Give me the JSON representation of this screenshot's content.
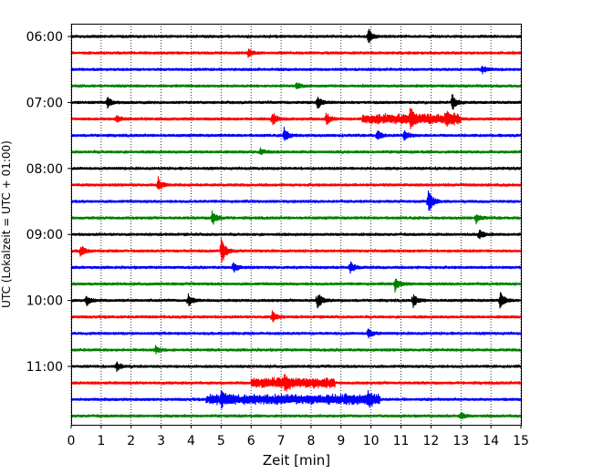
{
  "chart_data": {
    "type": "line",
    "title": "",
    "xlabel": "Zeit  [min]",
    "ylabel": "UTC (Lokalzeit = UTC + 01:00)",
    "xlim": [
      0,
      15
    ],
    "x_ticks": [
      "0",
      "1",
      "2",
      "3",
      "4",
      "5",
      "6",
      "7",
      "8",
      "9",
      "10",
      "11",
      "12",
      "13",
      "14",
      "15"
    ],
    "y_tick_labels": [
      "06:00",
      "07:00",
      "08:00",
      "09:00",
      "10:00",
      "11:00"
    ],
    "trace_start_times": [
      "06:00",
      "06:15",
      "06:30",
      "06:45",
      "07:00",
      "07:15",
      "07:30",
      "07:45",
      "08:00",
      "08:15",
      "08:30",
      "08:45",
      "09:00",
      "09:15",
      "09:30",
      "09:45",
      "10:00",
      "10:15",
      "10:30",
      "10:45",
      "11:00",
      "11:15",
      "11:30",
      "11:45"
    ],
    "trace_color_cycle": [
      "#000000",
      "#ff0000",
      "#0000ff",
      "#008000"
    ],
    "grid": {
      "x_dotted": true
    },
    "events": [
      {
        "trace": 0,
        "time_min": 9.9,
        "amp": 9
      },
      {
        "trace": 1,
        "time_min": 5.9,
        "amp": 4
      },
      {
        "trace": 2,
        "time_min": 13.7,
        "amp": 4
      },
      {
        "trace": 3,
        "time_min": 7.5,
        "amp": 4
      },
      {
        "trace": 4,
        "time_min": 1.2,
        "amp": 6
      },
      {
        "trace": 4,
        "time_min": 8.2,
        "amp": 8
      },
      {
        "trace": 4,
        "time_min": 12.7,
        "amp": 10
      },
      {
        "trace": 5,
        "time_min": 1.5,
        "amp": 5
      },
      {
        "trace": 5,
        "time_min": 6.7,
        "amp": 8
      },
      {
        "trace": 5,
        "time_min": 8.5,
        "amp": 7
      },
      {
        "trace": 5,
        "time_min": 11.3,
        "amp": 10
      },
      {
        "trace": 5,
        "time_min": 12.5,
        "amp": 7
      },
      {
        "trace": 6,
        "time_min": 7.1,
        "amp": 8
      },
      {
        "trace": 6,
        "time_min": 10.2,
        "amp": 6
      },
      {
        "trace": 6,
        "time_min": 11.1,
        "amp": 6
      },
      {
        "trace": 7,
        "time_min": 6.3,
        "amp": 4
      },
      {
        "trace": 9,
        "time_min": 2.9,
        "amp": 8
      },
      {
        "trace": 10,
        "time_min": 11.9,
        "amp": 16
      },
      {
        "trace": 11,
        "time_min": 4.7,
        "amp": 9
      },
      {
        "trace": 11,
        "time_min": 13.5,
        "amp": 6
      },
      {
        "trace": 12,
        "time_min": 13.6,
        "amp": 6
      },
      {
        "trace": 13,
        "time_min": 5.0,
        "amp": 18
      },
      {
        "trace": 13,
        "time_min": 0.3,
        "amp": 7
      },
      {
        "trace": 14,
        "time_min": 5.4,
        "amp": 6
      },
      {
        "trace": 14,
        "time_min": 9.3,
        "amp": 7
      },
      {
        "trace": 15,
        "time_min": 10.8,
        "amp": 8
      },
      {
        "trace": 16,
        "time_min": 0.5,
        "amp": 6
      },
      {
        "trace": 16,
        "time_min": 3.9,
        "amp": 7
      },
      {
        "trace": 16,
        "time_min": 8.2,
        "amp": 11
      },
      {
        "trace": 16,
        "time_min": 11.4,
        "amp": 8
      },
      {
        "trace": 16,
        "time_min": 14.3,
        "amp": 10
      },
      {
        "trace": 17,
        "time_min": 6.7,
        "amp": 7
      },
      {
        "trace": 18,
        "time_min": 9.9,
        "amp": 6
      },
      {
        "trace": 19,
        "time_min": 2.8,
        "amp": 4
      },
      {
        "trace": 20,
        "time_min": 1.5,
        "amp": 6
      },
      {
        "trace": 21,
        "time_min": 7.1,
        "amp": 7
      },
      {
        "trace": 22,
        "time_min": 5.0,
        "amp": 6
      },
      {
        "trace": 22,
        "time_min": 9.9,
        "amp": 7
      },
      {
        "trace": 23,
        "time_min": 13.0,
        "amp": 4
      }
    ],
    "bursts": [
      {
        "trace": 5,
        "from_min": 9.7,
        "to_min": 13.0,
        "amp": 5
      },
      {
        "trace": 21,
        "from_min": 6.0,
        "to_min": 8.8,
        "amp": 5
      },
      {
        "trace": 22,
        "from_min": 4.5,
        "to_min": 10.3,
        "amp": 5
      }
    ]
  }
}
